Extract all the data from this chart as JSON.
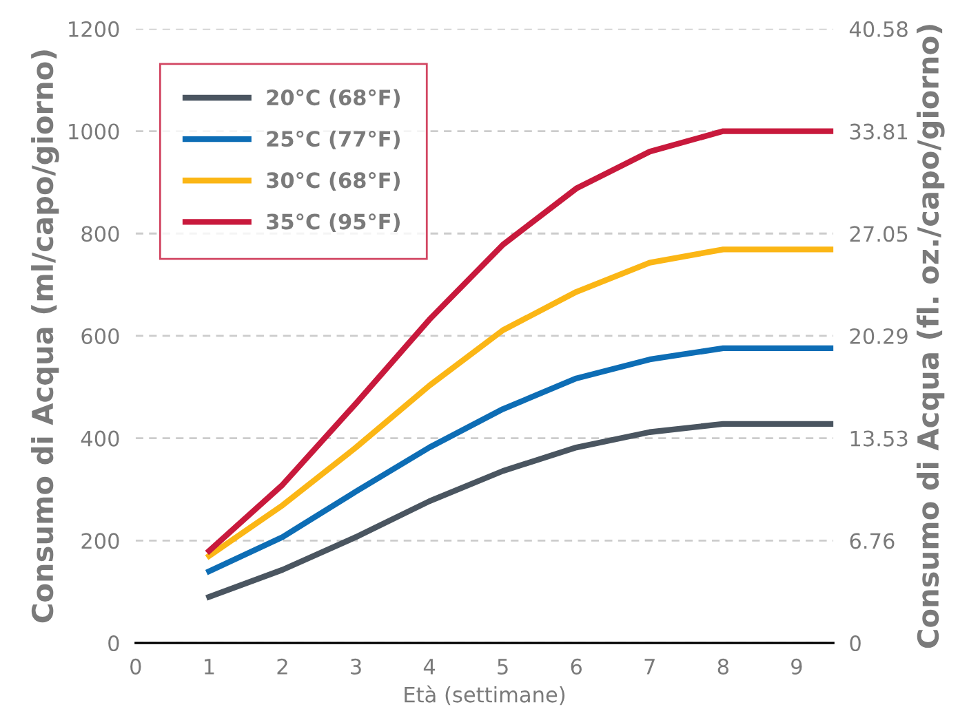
{
  "chart_data": {
    "type": "line",
    "xlabel": "Età (settimane)",
    "ylabel": "Consumo di Acqua (ml/capo/giorno)",
    "y2label": "Consumo di Acqua (fl. oz./capo/giorno)",
    "xlim": [
      0,
      9.5
    ],
    "xticks": [
      0,
      1,
      2,
      3,
      4,
      5,
      6,
      7,
      8,
      9
    ],
    "ylim": [
      0,
      1200
    ],
    "yticks": [
      0,
      200,
      400,
      600,
      800,
      1000,
      1200
    ],
    "y2lim": [
      0,
      40.58
    ],
    "y2ticks": [
      0,
      6.76,
      13.53,
      20.29,
      27.05,
      33.81,
      40.58
    ],
    "grid": "y",
    "legend": "top left",
    "marker": "none",
    "line_style": "solid",
    "series": [
      {
        "name": "20°C (68°F)",
        "color": "#4a5560",
        "x": [
          1,
          2,
          3,
          4,
          5,
          6,
          7,
          8,
          9.5
        ],
        "values": [
          90,
          143,
          207,
          277,
          336,
          382,
          412,
          428,
          428
        ]
      },
      {
        "name": "25°C (77°F)",
        "color": "#0d6db5",
        "x": [
          1,
          2,
          3,
          4,
          5,
          6,
          7,
          8,
          9.5
        ],
        "values": [
          140,
          207,
          296,
          382,
          457,
          517,
          554,
          576,
          576
        ]
      },
      {
        "name": "30°C (68°F)",
        "color": "#fbb615",
        "x": [
          1,
          2,
          3,
          4,
          5,
          6,
          7,
          8,
          9.5
        ],
        "values": [
          170,
          269,
          382,
          503,
          611,
          686,
          743,
          769,
          769
        ]
      },
      {
        "name": "35°C (95°F)",
        "color": "#c8193c",
        "x": [
          1,
          2,
          3,
          4,
          5,
          6,
          7,
          8,
          9.5
        ],
        "values": [
          180,
          309,
          468,
          632,
          778,
          888,
          960,
          1000,
          1000
        ]
      }
    ]
  }
}
